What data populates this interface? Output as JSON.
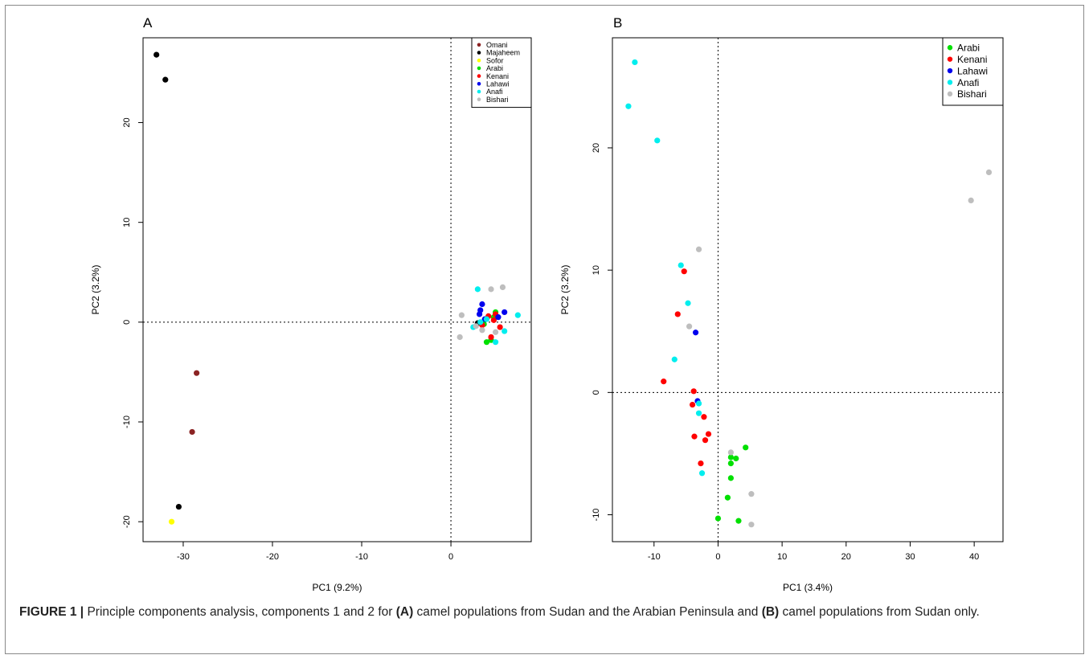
{
  "caption": {
    "label": "FIGURE 1 |",
    "t1": " Principle components analysis, components 1 and 2 for ",
    "ref_a": "(A)",
    "t2": " camel populations from Sudan and the Arabian Peninsula and ",
    "ref_b": "(B)",
    "t3": " camel populations from Sudan only."
  },
  "colors": {
    "Omani": "#8b2323",
    "Majaheem": "#000000",
    "Sofor": "#ffff00",
    "Arabi": "#00e000",
    "Kenani": "#ff0000",
    "Lahawi": "#0000ee",
    "Anafi": "#00eeee",
    "Bishari": "#bebebe"
  },
  "chart_data": [
    {
      "type": "scatter",
      "panel": "A",
      "xlabel": "PC1 (9.2%)",
      "ylabel": "PC2 (3.2%)",
      "xlim": [
        -34.5,
        9.0
      ],
      "ylim": [
        -22.0,
        28.5
      ],
      "xticks": [
        -30,
        -20,
        -10,
        0
      ],
      "yticks": [
        -20,
        -10,
        0,
        10,
        20
      ],
      "reference_lines": {
        "x": 0,
        "y": 0
      },
      "legend": {
        "position": "top-right",
        "entries": [
          "Omani",
          "Majaheem",
          "Sofor",
          "Arabi",
          "Kenani",
          "Lahawi",
          "Anafi",
          "Bishari"
        ]
      },
      "series": [
        {
          "name": "Omani",
          "points": [
            [
              -28.5,
              -5.1
            ],
            [
              -29.0,
              -11.0
            ]
          ]
        },
        {
          "name": "Majaheem",
          "points": [
            [
              -33.0,
              26.8
            ],
            [
              -32.0,
              24.3
            ],
            [
              -30.5,
              -18.5
            ],
            [
              3.0,
              -0.1
            ]
          ]
        },
        {
          "name": "Sofor",
          "points": [
            [
              -31.3,
              -20.0
            ]
          ]
        },
        {
          "name": "Arabi",
          "points": [
            [
              4.0,
              -2.0
            ],
            [
              4.5,
              -1.8
            ],
            [
              5.0,
              1.0
            ],
            [
              3.7,
              -0.2
            ],
            [
              4.8,
              0.5
            ]
          ]
        },
        {
          "name": "Kenani",
          "points": [
            [
              4.5,
              -1.5
            ],
            [
              5.0,
              0.8
            ],
            [
              3.5,
              -0.3
            ],
            [
              4.8,
              0.2
            ],
            [
              5.5,
              -0.5
            ],
            [
              4.2,
              0.6
            ]
          ]
        },
        {
          "name": "Lahawi",
          "points": [
            [
              3.3,
              1.2
            ],
            [
              3.5,
              1.8
            ],
            [
              6.0,
              1.0
            ],
            [
              5.3,
              0.5
            ],
            [
              3.8,
              0.3
            ],
            [
              3.2,
              0.8
            ]
          ]
        },
        {
          "name": "Anafi",
          "points": [
            [
              3.0,
              3.3
            ],
            [
              7.5,
              0.7
            ],
            [
              5.0,
              -2.0
            ],
            [
              6.0,
              -0.9
            ],
            [
              2.5,
              -0.5
            ],
            [
              4.0,
              0.3
            ],
            [
              3.3,
              0.0
            ]
          ]
        },
        {
          "name": "Bishari",
          "points": [
            [
              4.5,
              3.3
            ],
            [
              5.8,
              3.5
            ],
            [
              1.2,
              0.7
            ],
            [
              1.0,
              -1.5
            ],
            [
              3.5,
              -0.8
            ],
            [
              5.0,
              -1.0
            ],
            [
              2.8,
              -0.4
            ]
          ]
        }
      ]
    },
    {
      "type": "scatter",
      "panel": "B",
      "xlabel": "PC1 (3.4%)",
      "ylabel": "PC2 (3.2%)",
      "xlim": [
        -16.5,
        44.5
      ],
      "ylim": [
        -12.2,
        29.0
      ],
      "xticks": [
        -10,
        0,
        10,
        20,
        30,
        40
      ],
      "yticks": [
        -10,
        0,
        10,
        20
      ],
      "reference_lines": {
        "x": 0,
        "y": 0
      },
      "legend": {
        "position": "top-right",
        "entries": [
          "Arabi",
          "Kenani",
          "Lahawi",
          "Anafi",
          "Bishari"
        ]
      },
      "series": [
        {
          "name": "Arabi",
          "points": [
            [
              4.3,
              -4.5
            ],
            [
              2.0,
              -5.3
            ],
            [
              2.8,
              -5.4
            ],
            [
              2.0,
              -5.8
            ],
            [
              2.0,
              -7.0
            ],
            [
              1.5,
              -8.6
            ],
            [
              0.0,
              -10.3
            ],
            [
              3.2,
              -10.5
            ]
          ]
        },
        {
          "name": "Kenani",
          "points": [
            [
              -5.3,
              9.9
            ],
            [
              -6.3,
              6.4
            ],
            [
              -8.5,
              0.9
            ],
            [
              -3.8,
              0.1
            ],
            [
              -4.0,
              -1.0
            ],
            [
              -2.2,
              -2.0
            ],
            [
              -3.7,
              -3.6
            ],
            [
              -1.5,
              -3.4
            ],
            [
              -2.0,
              -3.9
            ],
            [
              -2.7,
              -5.8
            ]
          ]
        },
        {
          "name": "Lahawi",
          "points": [
            [
              -3.5,
              4.9
            ],
            [
              -3.2,
              -0.7
            ]
          ]
        },
        {
          "name": "Anafi",
          "points": [
            [
              -13.0,
              27.0
            ],
            [
              -14.0,
              23.4
            ],
            [
              -9.5,
              20.6
            ],
            [
              -5.8,
              10.4
            ],
            [
              -4.7,
              7.3
            ],
            [
              -6.8,
              2.7
            ],
            [
              -3.0,
              -0.9
            ],
            [
              -3.0,
              -1.7
            ],
            [
              -2.5,
              -6.6
            ]
          ]
        },
        {
          "name": "Bishari",
          "points": [
            [
              -3.0,
              11.7
            ],
            [
              -4.5,
              5.4
            ],
            [
              39.5,
              15.7
            ],
            [
              42.3,
              18.0
            ],
            [
              2.0,
              -4.9
            ],
            [
              5.2,
              -8.3
            ],
            [
              5.2,
              -10.8
            ]
          ]
        }
      ]
    }
  ]
}
